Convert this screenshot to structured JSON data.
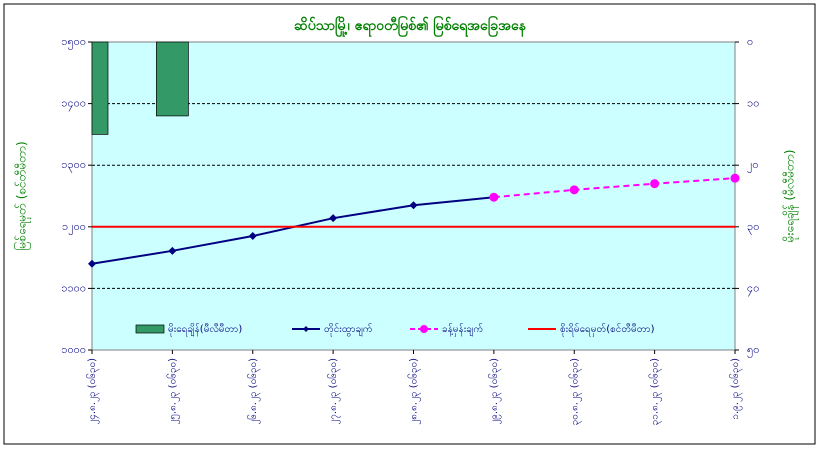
{
  "chart_data": {
    "type": "combo",
    "title": "ဆိပ်သာမြို့၊ ဧရာဝတီမြစ်၏ မြစ်ရေအခြေအနေ",
    "ylabel": "မြစ်ရေမှတ် (စင်တီမီတာ)",
    "y2label": "မိုးရေချိန် (မီလီမီတာ)",
    "categories": [
      "၂၄.၈.၂၃ (၀၆၃၀)",
      "၂၅.၈.၂၃ (၀၆၃၀)",
      "၂၆.၈.၂၃ (၀၆၃၀)",
      "၂၇.၈.၂၃ (၀၆၃၀)",
      "၂၈.၈.၂၃ (၀၆၃၀)",
      "၂၉.၈.၂၃ (၀၆၃၀)",
      "၃၀.၈.၂၃ (၀၆၃၀)",
      "၃၁.၈.၂၃ (၀၆၃၀)",
      "၁.၉.၂၃ (၀၆၃၀)"
    ],
    "ylim": [
      1000,
      1500
    ],
    "yticks": [
      {
        "value": 1000,
        "label": "၁၀၀၀"
      },
      {
        "value": 1100,
        "label": "၁၁၀၀"
      },
      {
        "value": 1200,
        "label": "၁၂၀၀"
      },
      {
        "value": 1300,
        "label": "၁၃၀၀"
      },
      {
        "value": 1400,
        "label": "၁၄၀၀"
      },
      {
        "value": 1500,
        "label": "၁၅၀၀"
      }
    ],
    "y2lim": [
      0,
      50
    ],
    "y2ticks": [
      {
        "value": 0,
        "label": "၀"
      },
      {
        "value": 10,
        "label": "၁၀"
      },
      {
        "value": 20,
        "label": "၂၀"
      },
      {
        "value": 30,
        "label": "၃၀"
      },
      {
        "value": 40,
        "label": "၄၀"
      },
      {
        "value": 50,
        "label": "၅၀"
      }
    ],
    "y2_reversed": true,
    "grid": true,
    "series": [
      {
        "name": "မိုးရေချိန်(မီလီမီတာ)",
        "kind": "bar",
        "axis": "y2",
        "color": "#339966",
        "values": [
          15,
          12,
          null,
          null,
          null,
          null,
          null,
          null,
          null
        ]
      },
      {
        "name": "တိုင်းထွာချက်",
        "kind": "line",
        "color": "#000080",
        "values": [
          1140,
          1161,
          1185,
          1214,
          1235,
          1248,
          null,
          null,
          null
        ]
      },
      {
        "name": "ခန့်မှန်းချက်",
        "kind": "dashed",
        "color": "#ff00ff",
        "values": [
          null,
          null,
          null,
          null,
          null,
          1248,
          1260,
          1270,
          1279
        ]
      },
      {
        "name": "စိုးရိမ်ရေမှတ်(စင်တီမီတာ)",
        "kind": "level",
        "color": "#ff0000",
        "value": 1200
      }
    ]
  }
}
